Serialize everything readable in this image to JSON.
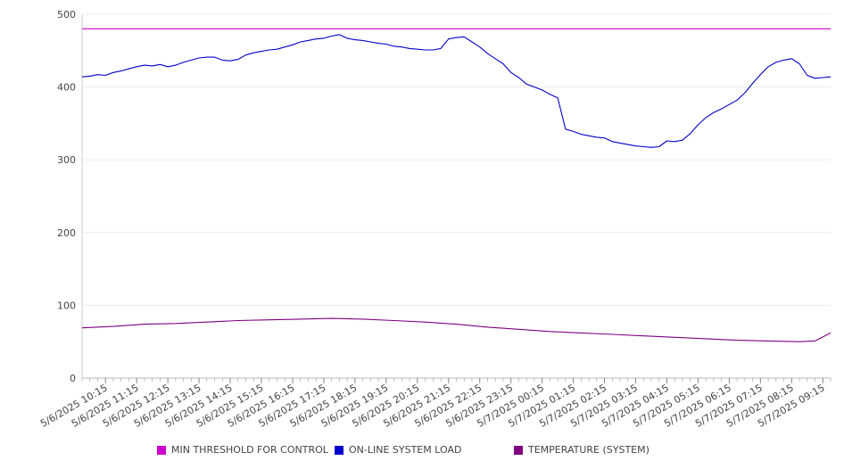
{
  "chart_data": {
    "type": "line",
    "title": "",
    "xlabel": "",
    "ylabel": "",
    "ylim": [
      0,
      500
    ],
    "y_ticks": [
      0,
      100,
      200,
      300,
      400,
      500
    ],
    "x_tick_labels": [
      "5/6/2025 10:15",
      "5/6/2025 11:15",
      "5/6/2025 12:15",
      "5/6/2025 13:15",
      "5/6/2025 14:15",
      "5/6/2025 15:15",
      "5/6/2025 16:15",
      "5/6/2025 17:15",
      "5/6/2025 18:15",
      "5/6/2025 19:15",
      "5/6/2025 20:15",
      "5/6/2025 21:15",
      "5/6/2025 22:15",
      "5/6/2025 23:15",
      "5/7/2025 00:15",
      "5/7/2025 01:15",
      "5/7/2025 02:15",
      "5/7/2025 03:15",
      "5/7/2025 04:15",
      "5/7/2025 05:15",
      "5/7/2025 06:15",
      "5/7/2025 07:15",
      "5/7/2025 08:15",
      "5/7/2025 09:15"
    ],
    "x_range": [
      "5/6/2025 09:30",
      "5/7/2025 09:30"
    ],
    "grid": true,
    "legend_position": "bottom",
    "series": [
      {
        "name": "MIN THRESHOLD FOR CONTROL",
        "color": "#cc00cc",
        "points": [
          [
            "5/6/2025 09:30",
            480
          ],
          [
            "5/7/2025 09:30",
            480
          ]
        ]
      },
      {
        "name": "ON-LINE SYSTEM LOAD",
        "color": "#0000cc",
        "points": [
          [
            "5/6/2025 09:30",
            414
          ],
          [
            "5/6/2025 09:45",
            415
          ],
          [
            "5/6/2025 10:00",
            417
          ],
          [
            "5/6/2025 10:15",
            416
          ],
          [
            "5/6/2025 10:30",
            420
          ],
          [
            "5/6/2025 10:45",
            422
          ],
          [
            "5/6/2025 11:00",
            425
          ],
          [
            "5/6/2025 11:15",
            428
          ],
          [
            "5/6/2025 11:30",
            430
          ],
          [
            "5/6/2025 11:45",
            429
          ],
          [
            "5/6/2025 12:00",
            431
          ],
          [
            "5/6/2025 12:15",
            428
          ],
          [
            "5/6/2025 12:30",
            430
          ],
          [
            "5/6/2025 12:45",
            434
          ],
          [
            "5/6/2025 13:00",
            437
          ],
          [
            "5/6/2025 13:15",
            440
          ],
          [
            "5/6/2025 13:30",
            441
          ],
          [
            "5/6/2025 13:45",
            441
          ],
          [
            "5/6/2025 14:00",
            437
          ],
          [
            "5/6/2025 14:15",
            436
          ],
          [
            "5/6/2025 14:30",
            438
          ],
          [
            "5/6/2025 14:45",
            444
          ],
          [
            "5/6/2025 15:00",
            447
          ],
          [
            "5/6/2025 15:15",
            449
          ],
          [
            "5/6/2025 15:30",
            451
          ],
          [
            "5/6/2025 15:45",
            452
          ],
          [
            "5/6/2025 16:00",
            455
          ],
          [
            "5/6/2025 16:15",
            458
          ],
          [
            "5/6/2025 16:30",
            462
          ],
          [
            "5/6/2025 16:45",
            464
          ],
          [
            "5/6/2025 17:00",
            466
          ],
          [
            "5/6/2025 17:15",
            467
          ],
          [
            "5/6/2025 17:30",
            470
          ],
          [
            "5/6/2025 17:45",
            472
          ],
          [
            "5/6/2025 18:00",
            467
          ],
          [
            "5/6/2025 18:15",
            465
          ],
          [
            "5/6/2025 18:30",
            464
          ],
          [
            "5/6/2025 18:45",
            462
          ],
          [
            "5/6/2025 19:00",
            460
          ],
          [
            "5/6/2025 19:15",
            459
          ],
          [
            "5/6/2025 19:30",
            456
          ],
          [
            "5/6/2025 19:45",
            455
          ],
          [
            "5/6/2025 20:00",
            453
          ],
          [
            "5/6/2025 20:15",
            452
          ],
          [
            "5/6/2025 20:30",
            451
          ],
          [
            "5/6/2025 20:45",
            451
          ],
          [
            "5/6/2025 21:00",
            453
          ],
          [
            "5/6/2025 21:15",
            466
          ],
          [
            "5/6/2025 21:30",
            468
          ],
          [
            "5/6/2025 21:45",
            469
          ],
          [
            "5/6/2025 22:00",
            462
          ],
          [
            "5/6/2025 22:15",
            455
          ],
          [
            "5/6/2025 22:30",
            446
          ],
          [
            "5/6/2025 22:45",
            439
          ],
          [
            "5/6/2025 23:00",
            432
          ],
          [
            "5/6/2025 23:15",
            420
          ],
          [
            "5/6/2025 23:30",
            413
          ],
          [
            "5/6/2025 23:45",
            404
          ],
          [
            "5/7/2025 00:00",
            400
          ],
          [
            "5/7/2025 00:15",
            396
          ],
          [
            "5/7/2025 00:30",
            390
          ],
          [
            "5/7/2025 00:45",
            385
          ],
          [
            "5/7/2025 01:00",
            342
          ],
          [
            "5/7/2025 01:15",
            339
          ],
          [
            "5/7/2025 01:30",
            335
          ],
          [
            "5/7/2025 01:45",
            333
          ],
          [
            "5/7/2025 02:00",
            331
          ],
          [
            "5/7/2025 02:15",
            330
          ],
          [
            "5/7/2025 02:30",
            325
          ],
          [
            "5/7/2025 02:45",
            323
          ],
          [
            "5/7/2025 03:00",
            321
          ],
          [
            "5/7/2025 03:15",
            319
          ],
          [
            "5/7/2025 03:30",
            318
          ],
          [
            "5/7/2025 03:45",
            317
          ],
          [
            "5/7/2025 04:00",
            318
          ],
          [
            "5/7/2025 04:15",
            326
          ],
          [
            "5/7/2025 04:30",
            325
          ],
          [
            "5/7/2025 04:45",
            327
          ],
          [
            "5/7/2025 05:00",
            336
          ],
          [
            "5/7/2025 05:15",
            348
          ],
          [
            "5/7/2025 05:30",
            358
          ],
          [
            "5/7/2025 05:45",
            365
          ],
          [
            "5/7/2025 06:00",
            370
          ],
          [
            "5/7/2025 06:15",
            376
          ],
          [
            "5/7/2025 06:30",
            382
          ],
          [
            "5/7/2025 06:45",
            392
          ],
          [
            "5/7/2025 07:00",
            405
          ],
          [
            "5/7/2025 07:15",
            417
          ],
          [
            "5/7/2025 07:30",
            428
          ],
          [
            "5/7/2025 07:45",
            434
          ],
          [
            "5/7/2025 08:00",
            437
          ],
          [
            "5/7/2025 08:15",
            439
          ],
          [
            "5/7/2025 08:30",
            432
          ],
          [
            "5/7/2025 08:45",
            416
          ],
          [
            "5/7/2025 09:00",
            412
          ],
          [
            "5/7/2025 09:15",
            413
          ],
          [
            "5/7/2025 09:30",
            414
          ]
        ]
      },
      {
        "name": "TEMPERATURE (SYSTEM)",
        "color": "#800080",
        "points": [
          [
            "5/6/2025 09:30",
            69
          ],
          [
            "5/6/2025 10:30",
            71
          ],
          [
            "5/6/2025 11:30",
            74
          ],
          [
            "5/6/2025 12:30",
            75
          ],
          [
            "5/6/2025 13:30",
            77
          ],
          [
            "5/6/2025 14:30",
            79
          ],
          [
            "5/6/2025 15:30",
            80
          ],
          [
            "5/6/2025 16:30",
            81
          ],
          [
            "5/6/2025 17:30",
            82
          ],
          [
            "5/6/2025 18:30",
            81
          ],
          [
            "5/6/2025 19:30",
            79
          ],
          [
            "5/6/2025 20:30",
            77
          ],
          [
            "5/6/2025 21:30",
            74
          ],
          [
            "5/6/2025 22:30",
            70
          ],
          [
            "5/6/2025 23:30",
            67
          ],
          [
            "5/7/2025 00:30",
            64
          ],
          [
            "5/7/2025 01:30",
            62
          ],
          [
            "5/7/2025 02:30",
            60
          ],
          [
            "5/7/2025 03:30",
            58
          ],
          [
            "5/7/2025 04:30",
            56
          ],
          [
            "5/7/2025 05:30",
            54
          ],
          [
            "5/7/2025 06:30",
            52
          ],
          [
            "5/7/2025 07:30",
            51
          ],
          [
            "5/7/2025 08:30",
            50
          ],
          [
            "5/7/2025 09:00",
            51
          ],
          [
            "5/7/2025 09:30",
            62
          ]
        ]
      }
    ]
  }
}
